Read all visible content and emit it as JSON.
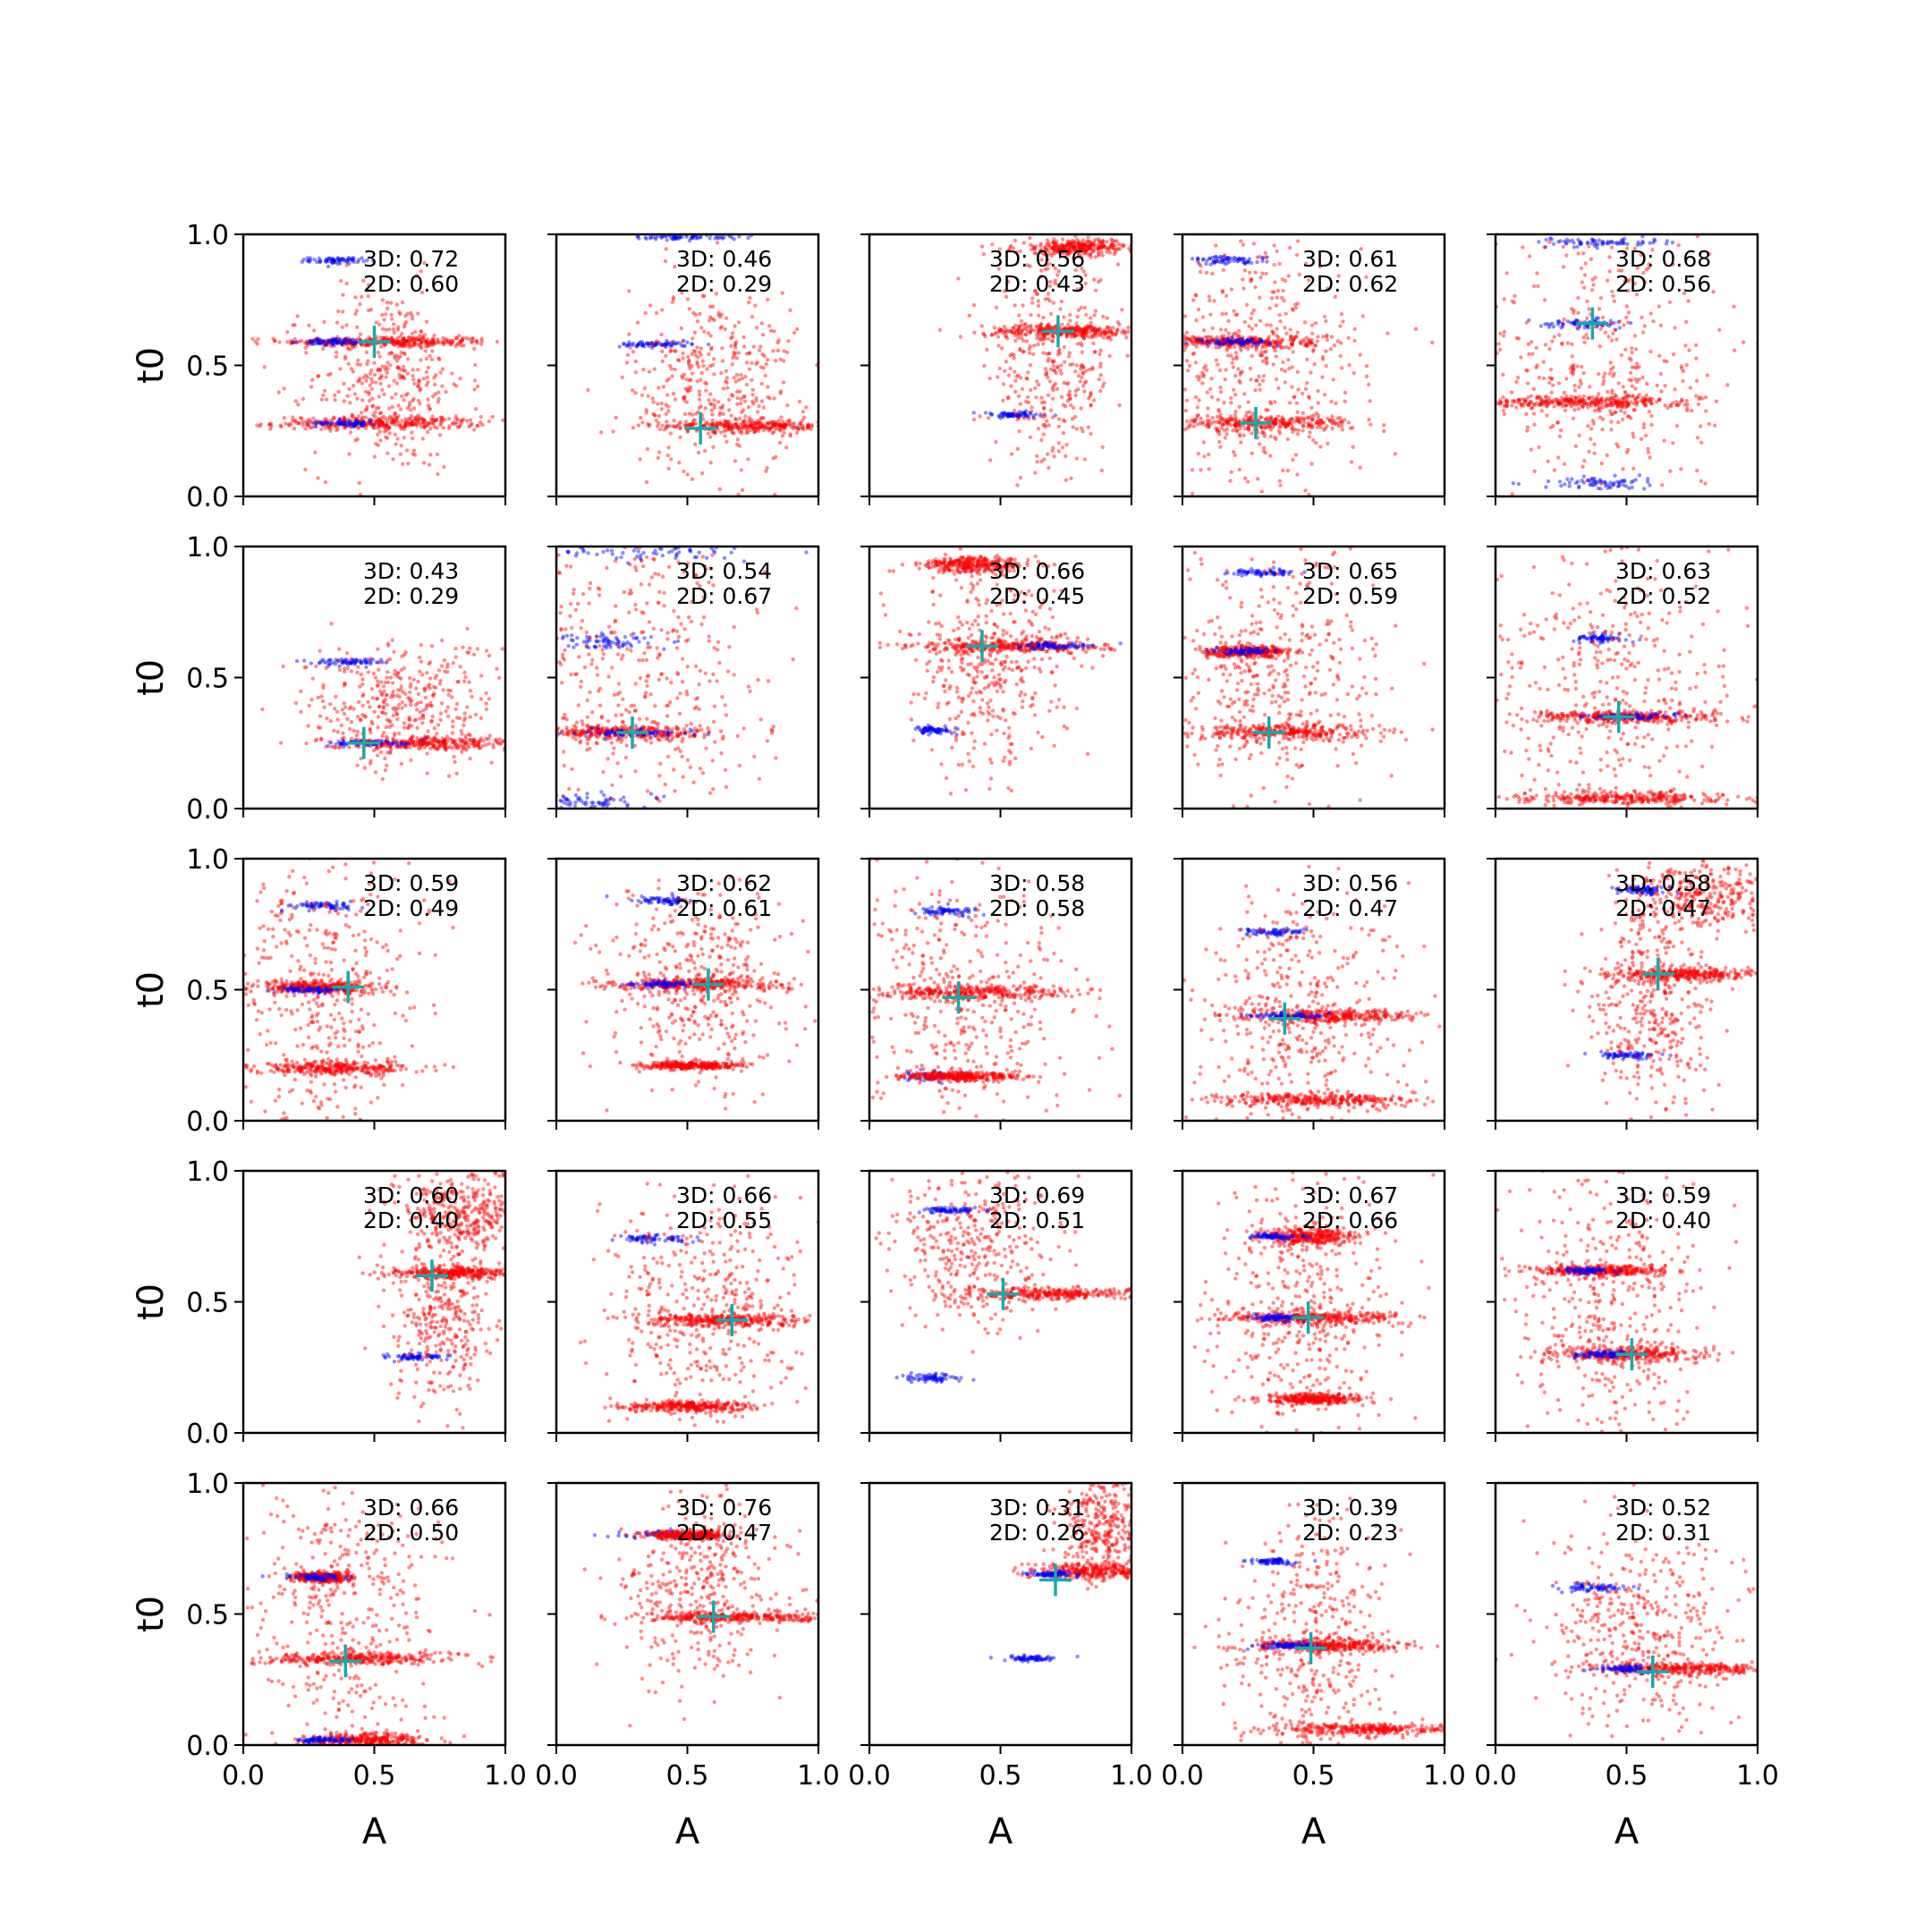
{
  "figure": {
    "xlabel": "A",
    "ylabel": "t0",
    "xlim": [
      0,
      1
    ],
    "ylim": [
      0,
      1
    ],
    "xticks": [
      "0.0",
      "0.5",
      "1.0"
    ],
    "yticks": [
      "0.0",
      "0.5",
      "1.0"
    ],
    "annotation_prefix": {
      "three_d": "3D: ",
      "two_d": "2D: "
    },
    "colors": {
      "accepted": "#ff0000",
      "rejected": "#0000ff",
      "estimate": "#17a9a9",
      "axes": "#000000"
    }
  },
  "chart_data": {
    "type": "scatter",
    "grid": false,
    "rows": 5,
    "cols": 5,
    "legend": "none",
    "panels": [
      {
        "three_d": "0.72",
        "two_d": "0.60",
        "marker": [
          0.5,
          0.59
        ],
        "clusters": [
          [
            0.55,
            0.59,
            0.2,
            0.01,
            "r"
          ],
          [
            0.52,
            0.28,
            0.2,
            0.012,
            "r"
          ],
          [
            0.35,
            0.9,
            0.05,
            0.006,
            "b"
          ],
          [
            0.55,
            0.45,
            0.15,
            0.18,
            "r"
          ],
          [
            0.35,
            0.59,
            0.06,
            0.006,
            "b"
          ],
          [
            0.4,
            0.28,
            0.06,
            0.006,
            "b"
          ]
        ]
      },
      {
        "three_d": "0.46",
        "two_d": "0.29",
        "marker": [
          0.55,
          0.26
        ],
        "clusters": [
          [
            0.75,
            0.27,
            0.18,
            0.012,
            "r"
          ],
          [
            0.38,
            0.58,
            0.07,
            0.006,
            "b"
          ],
          [
            0.6,
            0.45,
            0.16,
            0.18,
            "r"
          ],
          [
            0.5,
            0.99,
            0.1,
            0.005,
            "b"
          ]
        ]
      },
      {
        "three_d": "0.56",
        "two_d": "0.43",
        "marker": [
          0.72,
          0.63
        ],
        "clusters": [
          [
            0.75,
            0.63,
            0.15,
            0.012,
            "r"
          ],
          [
            0.55,
            0.31,
            0.07,
            0.006,
            "b"
          ],
          [
            0.8,
            0.95,
            0.12,
            0.015,
            "r"
          ],
          [
            0.7,
            0.5,
            0.12,
            0.2,
            "r"
          ]
        ]
      },
      {
        "three_d": "0.61",
        "two_d": "0.62",
        "marker": [
          0.28,
          0.28
        ],
        "clusters": [
          [
            0.3,
            0.28,
            0.18,
            0.015,
            "r"
          ],
          [
            0.2,
            0.59,
            0.15,
            0.012,
            "r"
          ],
          [
            0.18,
            0.9,
            0.07,
            0.008,
            "b"
          ],
          [
            0.3,
            0.5,
            0.2,
            0.25,
            "r"
          ],
          [
            0.2,
            0.59,
            0.07,
            0.006,
            "b"
          ]
        ]
      },
      {
        "three_d": "0.68",
        "two_d": "0.56",
        "marker": [
          0.37,
          0.66
        ],
        "clusters": [
          [
            0.33,
            0.66,
            0.08,
            0.008,
            "b"
          ],
          [
            0.35,
            0.36,
            0.2,
            0.012,
            "r"
          ],
          [
            0.4,
            0.97,
            0.12,
            0.008,
            "b"
          ],
          [
            0.38,
            0.05,
            0.1,
            0.012,
            "b"
          ],
          [
            0.4,
            0.5,
            0.22,
            0.3,
            "r"
          ]
        ]
      },
      {
        "three_d": "0.43",
        "two_d": "0.29",
        "marker": [
          0.46,
          0.25
        ],
        "clusters": [
          [
            0.7,
            0.25,
            0.2,
            0.012,
            "r"
          ],
          [
            0.4,
            0.56,
            0.07,
            0.006,
            "b"
          ],
          [
            0.6,
            0.4,
            0.18,
            0.12,
            "r"
          ],
          [
            0.5,
            0.25,
            0.08,
            0.006,
            "b"
          ]
        ]
      },
      {
        "three_d": "0.54",
        "two_d": "0.67",
        "marker": [
          0.29,
          0.29
        ],
        "clusters": [
          [
            0.25,
            0.29,
            0.18,
            0.015,
            "r"
          ],
          [
            0.2,
            0.64,
            0.08,
            0.015,
            "b"
          ],
          [
            0.3,
            0.98,
            0.25,
            0.015,
            "b"
          ],
          [
            0.3,
            0.5,
            0.25,
            0.3,
            "r"
          ],
          [
            0.1,
            0.03,
            0.1,
            0.015,
            "b"
          ],
          [
            0.3,
            0.29,
            0.12,
            0.008,
            "b"
          ]
        ]
      },
      {
        "three_d": "0.66",
        "two_d": "0.45",
        "marker": [
          0.43,
          0.62
        ],
        "clusters": [
          [
            0.55,
            0.62,
            0.18,
            0.012,
            "r"
          ],
          [
            0.25,
            0.3,
            0.04,
            0.008,
            "b"
          ],
          [
            0.4,
            0.93,
            0.1,
            0.015,
            "r"
          ],
          [
            0.45,
            0.55,
            0.15,
            0.2,
            "r"
          ],
          [
            0.7,
            0.62,
            0.08,
            0.006,
            "b"
          ]
        ]
      },
      {
        "three_d": "0.65",
        "two_d": "0.59",
        "marker": [
          0.33,
          0.29
        ],
        "clusters": [
          [
            0.4,
            0.29,
            0.18,
            0.015,
            "r"
          ],
          [
            0.25,
            0.6,
            0.08,
            0.01,
            "r"
          ],
          [
            0.3,
            0.9,
            0.06,
            0.006,
            "b"
          ],
          [
            0.35,
            0.5,
            0.2,
            0.25,
            "r"
          ],
          [
            0.25,
            0.6,
            0.05,
            0.006,
            "b"
          ]
        ]
      },
      {
        "three_d": "0.63",
        "two_d": "0.52",
        "marker": [
          0.47,
          0.35
        ],
        "clusters": [
          [
            0.5,
            0.35,
            0.18,
            0.012,
            "r"
          ],
          [
            0.4,
            0.65,
            0.05,
            0.008,
            "b"
          ],
          [
            0.5,
            0.04,
            0.2,
            0.012,
            "r"
          ],
          [
            0.45,
            0.45,
            0.25,
            0.3,
            "r"
          ],
          [
            0.5,
            0.35,
            0.08,
            0.006,
            "b"
          ]
        ]
      },
      {
        "three_d": "0.59",
        "two_d": "0.49",
        "marker": [
          0.4,
          0.51
        ],
        "clusters": [
          [
            0.28,
            0.51,
            0.12,
            0.012,
            "r"
          ],
          [
            0.35,
            0.2,
            0.15,
            0.012,
            "r"
          ],
          [
            0.3,
            0.82,
            0.06,
            0.008,
            "b"
          ],
          [
            0.3,
            0.5,
            0.18,
            0.3,
            "r"
          ],
          [
            0.25,
            0.5,
            0.06,
            0.006,
            "b"
          ]
        ]
      },
      {
        "three_d": "0.62",
        "two_d": "0.61",
        "marker": [
          0.58,
          0.52
        ],
        "clusters": [
          [
            0.55,
            0.52,
            0.16,
            0.012,
            "r"
          ],
          [
            0.4,
            0.84,
            0.06,
            0.008,
            "b"
          ],
          [
            0.5,
            0.21,
            0.1,
            0.008,
            "r"
          ],
          [
            0.55,
            0.5,
            0.18,
            0.2,
            "r"
          ],
          [
            0.4,
            0.52,
            0.06,
            0.006,
            "b"
          ]
        ]
      },
      {
        "three_d": "0.58",
        "two_d": "0.58",
        "marker": [
          0.34,
          0.47
        ],
        "clusters": [
          [
            0.4,
            0.49,
            0.2,
            0.015,
            "r"
          ],
          [
            0.25,
            0.17,
            0.08,
            0.01,
            "b"
          ],
          [
            0.3,
            0.8,
            0.06,
            0.008,
            "b"
          ],
          [
            0.35,
            0.45,
            0.22,
            0.25,
            "r"
          ],
          [
            0.35,
            0.17,
            0.12,
            0.008,
            "r"
          ]
        ]
      },
      {
        "three_d": "0.56",
        "two_d": "0.47",
        "marker": [
          0.39,
          0.39
        ],
        "clusters": [
          [
            0.55,
            0.4,
            0.18,
            0.012,
            "r"
          ],
          [
            0.35,
            0.72,
            0.05,
            0.006,
            "b"
          ],
          [
            0.5,
            0.08,
            0.2,
            0.012,
            "r"
          ],
          [
            0.45,
            0.4,
            0.2,
            0.25,
            "r"
          ],
          [
            0.4,
            0.4,
            0.08,
            0.006,
            "b"
          ]
        ]
      },
      {
        "three_d": "0.58",
        "two_d": "0.47",
        "marker": [
          0.62,
          0.56
        ],
        "clusters": [
          [
            0.75,
            0.56,
            0.16,
            0.012,
            "r"
          ],
          [
            0.5,
            0.25,
            0.06,
            0.006,
            "b"
          ],
          [
            0.8,
            0.85,
            0.15,
            0.06,
            "r"
          ],
          [
            0.6,
            0.45,
            0.12,
            0.2,
            "r"
          ],
          [
            0.55,
            0.88,
            0.05,
            0.008,
            "b"
          ]
        ]
      },
      {
        "three_d": "0.60",
        "two_d": "0.40",
        "marker": [
          0.72,
          0.6
        ],
        "clusters": [
          [
            0.8,
            0.61,
            0.12,
            0.012,
            "r"
          ],
          [
            0.65,
            0.29,
            0.06,
            0.006,
            "b"
          ],
          [
            0.85,
            0.85,
            0.12,
            0.08,
            "r"
          ],
          [
            0.75,
            0.45,
            0.1,
            0.2,
            "r"
          ]
        ]
      },
      {
        "three_d": "0.66",
        "two_d": "0.55",
        "marker": [
          0.67,
          0.43
        ],
        "clusters": [
          [
            0.65,
            0.43,
            0.16,
            0.012,
            "r"
          ],
          [
            0.38,
            0.74,
            0.07,
            0.008,
            "b"
          ],
          [
            0.5,
            0.1,
            0.12,
            0.01,
            "r"
          ],
          [
            0.55,
            0.45,
            0.18,
            0.25,
            "r"
          ]
        ]
      },
      {
        "three_d": "0.69",
        "two_d": "0.51",
        "marker": [
          0.51,
          0.53
        ],
        "clusters": [
          [
            0.7,
            0.53,
            0.18,
            0.012,
            "r"
          ],
          [
            0.25,
            0.21,
            0.06,
            0.008,
            "b"
          ],
          [
            0.4,
            0.7,
            0.15,
            0.15,
            "r"
          ],
          [
            0.3,
            0.85,
            0.05,
            0.006,
            "b"
          ]
        ]
      },
      {
        "three_d": "0.67",
        "two_d": "0.66",
        "marker": [
          0.48,
          0.44
        ],
        "clusters": [
          [
            0.5,
            0.44,
            0.18,
            0.012,
            "r"
          ],
          [
            0.48,
            0.75,
            0.08,
            0.015,
            "r"
          ],
          [
            0.5,
            0.13,
            0.1,
            0.01,
            "r"
          ],
          [
            0.45,
            0.5,
            0.18,
            0.25,
            "r"
          ],
          [
            0.35,
            0.75,
            0.05,
            0.006,
            "b"
          ],
          [
            0.35,
            0.44,
            0.05,
            0.006,
            "b"
          ]
        ]
      },
      {
        "three_d": "0.59",
        "two_d": "0.40",
        "marker": [
          0.52,
          0.3
        ],
        "clusters": [
          [
            0.5,
            0.3,
            0.15,
            0.015,
            "r"
          ],
          [
            0.4,
            0.62,
            0.12,
            0.01,
            "r"
          ],
          [
            0.45,
            0.45,
            0.18,
            0.3,
            "r"
          ],
          [
            0.35,
            0.62,
            0.05,
            0.006,
            "b"
          ],
          [
            0.4,
            0.3,
            0.05,
            0.006,
            "b"
          ]
        ]
      },
      {
        "three_d": "0.66",
        "two_d": "0.50",
        "marker": [
          0.39,
          0.32
        ],
        "clusters": [
          [
            0.42,
            0.33,
            0.18,
            0.012,
            "r"
          ],
          [
            0.3,
            0.64,
            0.06,
            0.01,
            "r"
          ],
          [
            0.45,
            0.02,
            0.12,
            0.012,
            "r"
          ],
          [
            0.4,
            0.5,
            0.18,
            0.3,
            "r"
          ],
          [
            0.3,
            0.02,
            0.06,
            0.006,
            "b"
          ],
          [
            0.28,
            0.64,
            0.05,
            0.006,
            "b"
          ]
        ]
      },
      {
        "three_d": "0.76",
        "two_d": "0.47",
        "marker": [
          0.6,
          0.49
        ],
        "clusters": [
          [
            0.7,
            0.49,
            0.18,
            0.012,
            "r"
          ],
          [
            0.42,
            0.8,
            0.08,
            0.008,
            "b"
          ],
          [
            0.55,
            0.6,
            0.15,
            0.18,
            "r"
          ],
          [
            0.5,
            0.8,
            0.07,
            0.008,
            "r"
          ]
        ]
      },
      {
        "three_d": "0.31",
        "two_d": "0.26",
        "marker": [
          0.71,
          0.63
        ],
        "clusters": [
          [
            0.85,
            0.66,
            0.12,
            0.015,
            "r"
          ],
          [
            0.62,
            0.33,
            0.04,
            0.005,
            "b"
          ],
          [
            0.9,
            0.85,
            0.08,
            0.1,
            "r"
          ],
          [
            0.7,
            0.65,
            0.05,
            0.006,
            "b"
          ]
        ]
      },
      {
        "three_d": "0.39",
        "two_d": "0.23",
        "marker": [
          0.49,
          0.37
        ],
        "clusters": [
          [
            0.55,
            0.38,
            0.15,
            0.012,
            "r"
          ],
          [
            0.35,
            0.7,
            0.05,
            0.006,
            "b"
          ],
          [
            0.7,
            0.06,
            0.18,
            0.012,
            "r"
          ],
          [
            0.5,
            0.4,
            0.15,
            0.25,
            "r"
          ],
          [
            0.4,
            0.38,
            0.06,
            0.006,
            "b"
          ]
        ]
      },
      {
        "three_d": "0.52",
        "two_d": "0.31",
        "marker": [
          0.6,
          0.28
        ],
        "clusters": [
          [
            0.7,
            0.29,
            0.16,
            0.012,
            "r"
          ],
          [
            0.38,
            0.6,
            0.06,
            0.008,
            "b"
          ],
          [
            0.55,
            0.45,
            0.18,
            0.2,
            "r"
          ],
          [
            0.5,
            0.29,
            0.05,
            0.006,
            "b"
          ]
        ]
      }
    ]
  }
}
